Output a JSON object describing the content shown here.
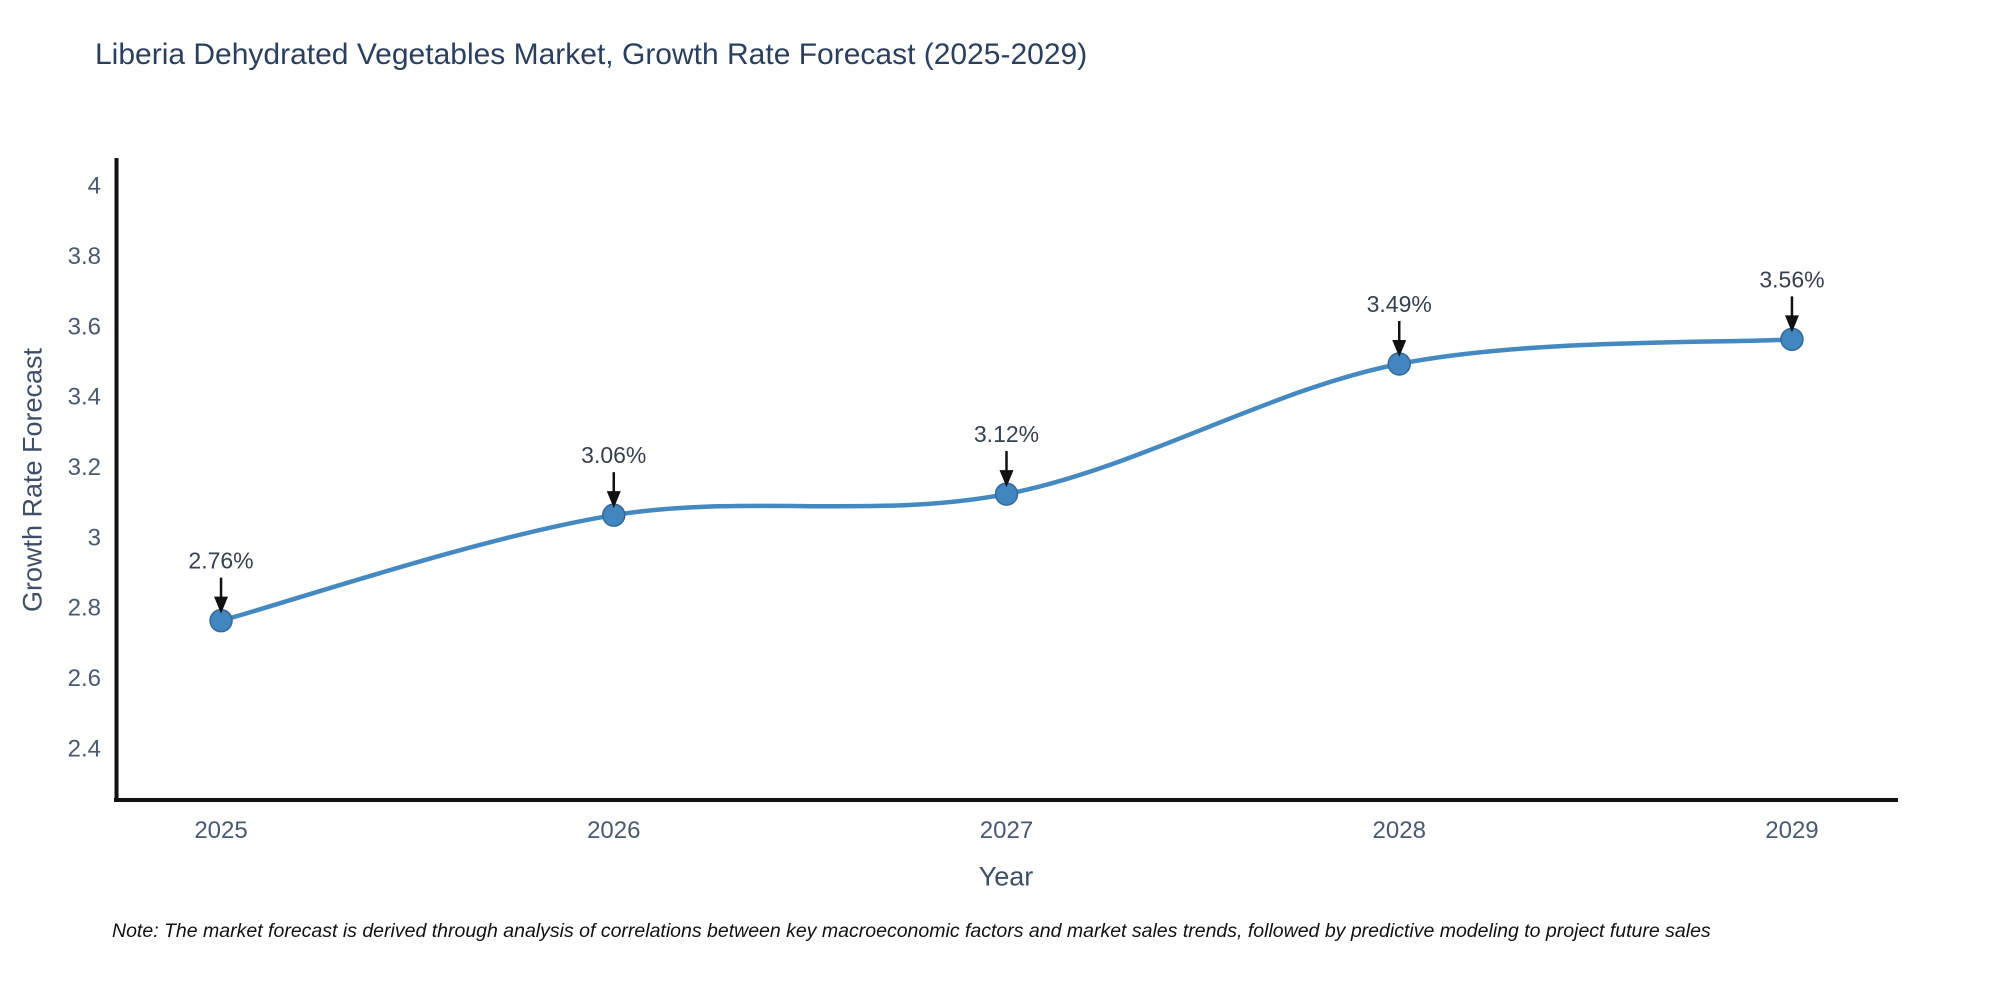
{
  "chart_data": {
    "type": "line",
    "title": "Liberia Dehydrated Vegetables Market, Growth Rate Forecast (2025-2029)",
    "xlabel": "Year",
    "ylabel": "Growth Rate Forecast",
    "categories": [
      2025,
      2026,
      2027,
      2028,
      2029
    ],
    "values": [
      2.76,
      3.06,
      3.12,
      3.49,
      3.56
    ],
    "point_labels": [
      "2.76%",
      "3.06%",
      "3.12%",
      "3.49%",
      "3.56%"
    ],
    "y_ticks": [
      2.4,
      2.6,
      2.8,
      3,
      3.2,
      3.4,
      3.6,
      3.8,
      4
    ],
    "ylim": [
      2.25,
      4.07
    ],
    "xlim": [
      2024.73,
      2029.27
    ],
    "line_shape": "spline",
    "grid": false,
    "legend_position": "none",
    "colors": {
      "line": "#4589c1",
      "marker_fill": "#4186be",
      "marker_edge": "#35699a",
      "axis_line": "#111111",
      "title_text": "#2a3f5f",
      "tick_text": "#4a5872",
      "annotation_text": "#36404f",
      "arrow": "#111111",
      "background": "#ffffff"
    }
  },
  "note": "Note: The market forecast is derived through analysis of correlations between key macroeconomic factors and market sales trends, followed by predictive modeling to project future sales"
}
